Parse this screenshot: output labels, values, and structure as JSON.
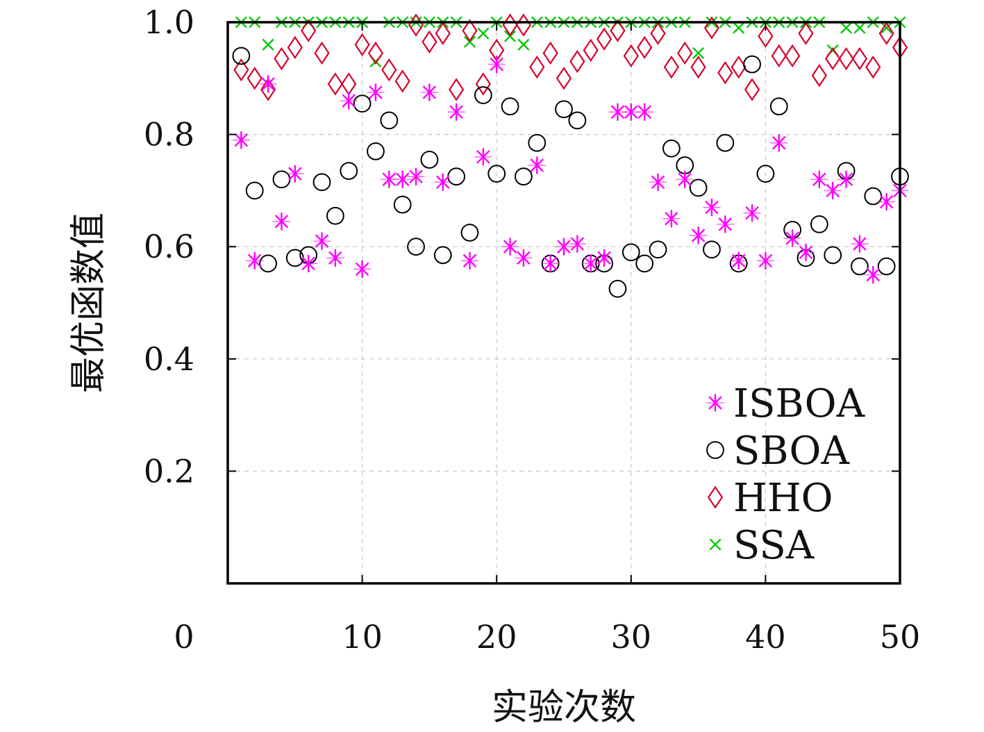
{
  "chart_data": {
    "type": "scatter",
    "xlabel": "实验次数",
    "ylabel": "最优函数值",
    "xlim": [
      0,
      50
    ],
    "ylim": [
      0,
      1.0
    ],
    "xticks": [
      "0",
      "10",
      "20",
      "30",
      "40",
      "50"
    ],
    "yticks": [
      "0.2",
      "0.4",
      "0.6",
      "0.8",
      "1.0"
    ],
    "grid": true,
    "legend_position": "bottom-right",
    "x": [
      1,
      2,
      3,
      4,
      5,
      6,
      7,
      8,
      9,
      10,
      11,
      12,
      13,
      14,
      15,
      16,
      17,
      18,
      19,
      20,
      21,
      22,
      23,
      24,
      25,
      26,
      27,
      28,
      29,
      30,
      31,
      32,
      33,
      34,
      35,
      36,
      37,
      38,
      39,
      40,
      41,
      42,
      43,
      44,
      45,
      46,
      47,
      48,
      49,
      50
    ],
    "series": [
      {
        "name": "ISBOA",
        "marker": "asterisk",
        "color": "#ff00ff",
        "values": [
          0.79,
          0.575,
          0.89,
          0.645,
          0.73,
          0.57,
          0.61,
          0.58,
          0.86,
          0.56,
          0.875,
          0.72,
          0.72,
          0.725,
          0.875,
          0.715,
          0.84,
          0.575,
          0.76,
          0.925,
          0.6,
          0.58,
          0.745,
          0.57,
          0.6,
          0.605,
          0.57,
          0.58,
          0.84,
          0.84,
          0.84,
          0.715,
          0.65,
          0.72,
          0.62,
          0.67,
          0.64,
          0.575,
          0.66,
          0.575,
          0.785,
          0.615,
          0.59,
          0.72,
          0.7,
          0.72,
          0.605,
          0.55,
          0.68,
          0.7
        ]
      },
      {
        "name": "SBOA",
        "marker": "circle",
        "color": "#000000",
        "values": [
          0.94,
          0.7,
          0.57,
          0.72,
          0.58,
          0.585,
          0.715,
          0.655,
          0.735,
          0.855,
          0.77,
          0.825,
          0.675,
          0.6,
          0.755,
          0.585,
          0.725,
          0.625,
          0.87,
          0.73,
          0.85,
          0.725,
          0.785,
          0.57,
          0.845,
          0.825,
          0.57,
          0.57,
          0.525,
          0.59,
          0.57,
          0.595,
          0.775,
          0.745,
          0.705,
          0.595,
          0.785,
          0.57,
          0.925,
          0.73,
          0.85,
          0.63,
          0.58,
          0.64,
          0.585,
          0.735,
          0.565,
          0.69,
          0.565,
          0.725
        ]
      },
      {
        "name": "HHO",
        "marker": "diamond",
        "color": "#d6002a",
        "values": [
          0.915,
          0.9,
          0.88,
          0.935,
          0.955,
          0.985,
          0.945,
          0.89,
          0.89,
          0.96,
          0.945,
          0.915,
          0.895,
          0.995,
          0.965,
          0.98,
          0.88,
          0.985,
          0.89,
          0.95,
          0.995,
          0.995,
          0.92,
          0.945,
          0.9,
          0.93,
          0.95,
          0.97,
          0.985,
          0.94,
          0.955,
          0.98,
          0.92,
          0.945,
          0.92,
          0.99,
          0.91,
          0.92,
          0.88,
          0.975,
          0.94,
          0.94,
          0.98,
          0.905,
          0.935,
          0.935,
          0.935,
          0.92,
          0.98,
          0.955
        ]
      },
      {
        "name": "SSA",
        "marker": "x",
        "color": "#00c800",
        "values": [
          1.0,
          1.0,
          0.96,
          1.0,
          1.0,
          1.0,
          1.0,
          1.0,
          1.0,
          1.0,
          0.93,
          1.0,
          1.0,
          1.0,
          1.0,
          1.0,
          1.0,
          0.965,
          0.98,
          1.0,
          0.975,
          0.96,
          1.0,
          1.0,
          1.0,
          1.0,
          1.0,
          1.0,
          1.0,
          1.0,
          1.0,
          1.0,
          1.0,
          1.0,
          0.945,
          1.0,
          1.0,
          0.99,
          1.0,
          1.0,
          1.0,
          1.0,
          1.0,
          1.0,
          0.95,
          0.99,
          0.99,
          1.0,
          0.99,
          1.0
        ]
      }
    ]
  }
}
